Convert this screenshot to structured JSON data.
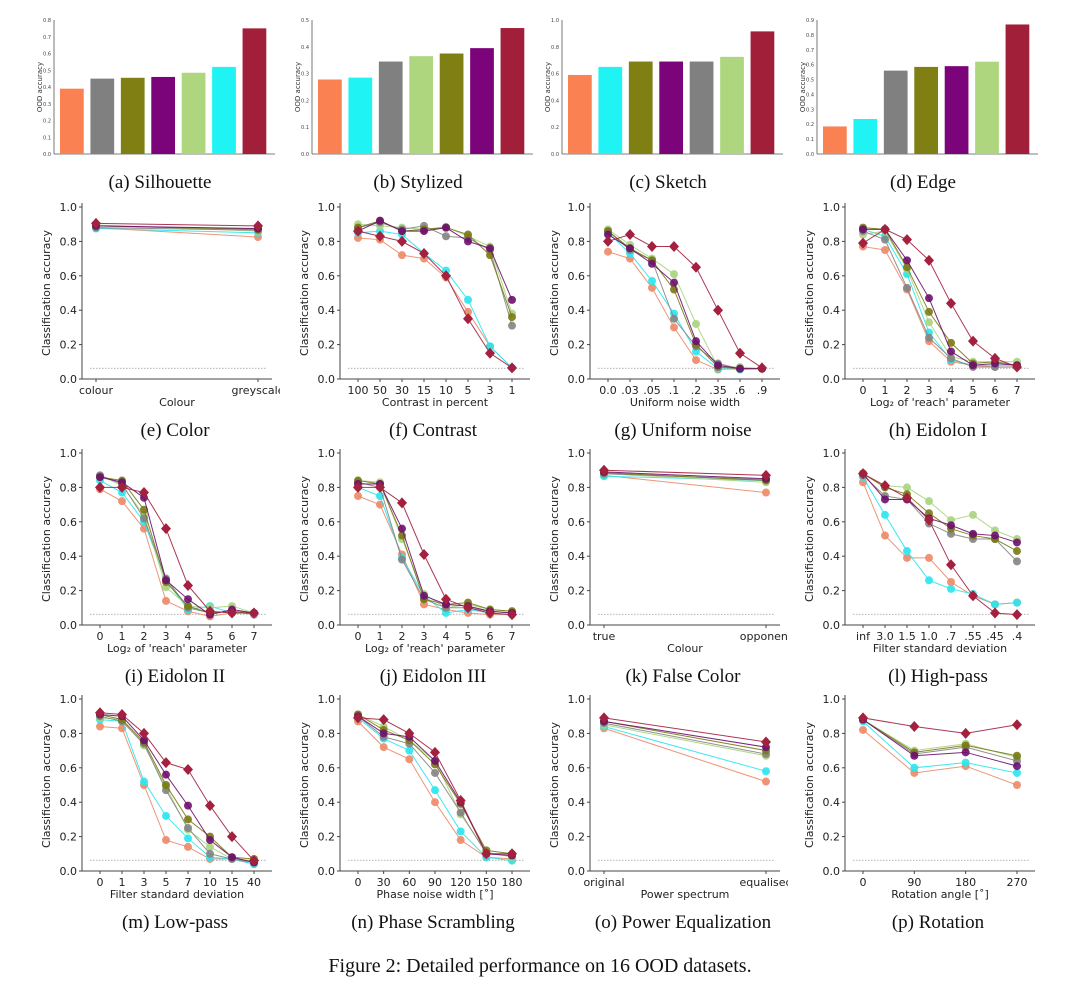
{
  "figure_caption": "Figure 2: Detailed performance on 16 OOD datasets.",
  "series_styles": [
    {
      "color": "#a3203f",
      "marker": "diamond"
    },
    {
      "color": "#6e0f6e",
      "marker": "circle"
    },
    {
      "color": "#7a7a14",
      "marker": "circle"
    },
    {
      "color": "#848484",
      "marker": "circle"
    },
    {
      "color": "#a9d47e",
      "marker": "circle"
    },
    {
      "color": "#2ae6ee",
      "marker": "circle"
    },
    {
      "color": "#ec8a68",
      "marker": "circle"
    }
  ],
  "chance_level": 0.0625,
  "chart_data": [
    {
      "type": "bar",
      "caption": "(a) Silhouette",
      "ylabel": "OOD accuracy",
      "ylim": [
        0,
        0.8
      ],
      "yticks": [
        "0.0",
        "0.1",
        "0.2",
        "0.3",
        "0.4",
        "0.5",
        "0.6",
        "0.7",
        "0.8"
      ],
      "bars": [
        {
          "value": 0.39,
          "color": "#f98152"
        },
        {
          "value": 0.45,
          "color": "#808080"
        },
        {
          "value": 0.455,
          "color": "#7f7f13"
        },
        {
          "value": 0.46,
          "color": "#7b047b"
        },
        {
          "value": 0.485,
          "color": "#add67e"
        },
        {
          "value": 0.52,
          "color": "#1ff3f3"
        },
        {
          "value": 0.75,
          "color": "#a11f38"
        }
      ]
    },
    {
      "type": "bar",
      "caption": "(b) Stylized",
      "ylabel": "OOD accuracy",
      "ylim": [
        0,
        0.5
      ],
      "yticks": [
        "0.0",
        "0.1",
        "0.2",
        "0.3",
        "0.4",
        "0.5"
      ],
      "bars": [
        {
          "value": 0.278,
          "color": "#f98152"
        },
        {
          "value": 0.285,
          "color": "#1ff3f3"
        },
        {
          "value": 0.345,
          "color": "#808080"
        },
        {
          "value": 0.365,
          "color": "#add67e"
        },
        {
          "value": 0.375,
          "color": "#7f7f13"
        },
        {
          "value": 0.395,
          "color": "#7b047b"
        },
        {
          "value": 0.47,
          "color": "#a11f38"
        }
      ]
    },
    {
      "type": "bar",
      "caption": "(c) Sketch",
      "ylabel": "OOD accuracy",
      "ylim": [
        0,
        1.0
      ],
      "yticks": [
        "0.0",
        "0.2",
        "0.4",
        "0.6",
        "0.8",
        "1.0"
      ],
      "bars": [
        {
          "value": 0.59,
          "color": "#f98152"
        },
        {
          "value": 0.65,
          "color": "#1ff3f3"
        },
        {
          "value": 0.69,
          "color": "#7f7f13"
        },
        {
          "value": 0.69,
          "color": "#7b047b"
        },
        {
          "value": 0.69,
          "color": "#808080"
        },
        {
          "value": 0.725,
          "color": "#add67e"
        },
        {
          "value": 0.915,
          "color": "#a11f38"
        }
      ]
    },
    {
      "type": "bar",
      "caption": "(d) Edge",
      "ylabel": "OOD accuracy",
      "ylim": [
        0,
        0.9
      ],
      "yticks": [
        "0.0",
        "0.1",
        "0.2",
        "0.3",
        "0.4",
        "0.5",
        "0.6",
        "0.7",
        "0.8",
        "0.9"
      ],
      "bars": [
        {
          "value": 0.185,
          "color": "#f98152"
        },
        {
          "value": 0.235,
          "color": "#1ff3f3"
        },
        {
          "value": 0.56,
          "color": "#808080"
        },
        {
          "value": 0.585,
          "color": "#7f7f13"
        },
        {
          "value": 0.59,
          "color": "#7b047b"
        },
        {
          "value": 0.62,
          "color": "#add67e"
        },
        {
          "value": 0.87,
          "color": "#a11f38"
        }
      ]
    },
    {
      "type": "line",
      "caption": "(e) Color",
      "xlabel": "Colour",
      "ylabel": "Classification accuracy",
      "ylim": [
        0,
        1
      ],
      "x": [
        "colour",
        "greyscale"
      ],
      "y": [
        [
          0.905,
          0.89
        ],
        [
          0.89,
          0.875
        ],
        [
          0.89,
          0.87
        ],
        [
          0.88,
          0.865
        ],
        [
          0.895,
          0.86
        ],
        [
          0.875,
          0.85
        ],
        [
          0.88,
          0.825
        ]
      ]
    },
    {
      "type": "line",
      "caption": "(f) Contrast",
      "xlabel": "Contrast in percent",
      "ylabel": "Classification accuracy",
      "ylim": [
        0,
        1
      ],
      "x": [
        "100",
        "50",
        "30",
        "15",
        "10",
        "5",
        "3",
        "1"
      ],
      "y": [
        [
          0.86,
          0.83,
          0.8,
          0.73,
          0.6,
          0.35,
          0.15,
          0.065
        ],
        [
          0.86,
          0.92,
          0.86,
          0.86,
          0.88,
          0.8,
          0.76,
          0.46
        ],
        [
          0.88,
          0.92,
          0.86,
          0.87,
          0.88,
          0.84,
          0.72,
          0.36
        ],
        [
          0.88,
          0.91,
          0.87,
          0.89,
          0.83,
          0.82,
          0.75,
          0.31
        ],
        [
          0.9,
          0.89,
          0.88,
          0.87,
          0.885,
          0.83,
          0.77,
          0.38
        ],
        [
          0.85,
          0.86,
          0.84,
          0.73,
          0.63,
          0.46,
          0.19,
          0.065
        ],
        [
          0.82,
          0.81,
          0.72,
          0.7,
          0.59,
          0.39,
          0.19,
          0.065
        ]
      ]
    },
    {
      "type": "line",
      "caption": "(g) Uniform noise",
      "xlabel": "Uniform noise width",
      "ylabel": "Classification accuracy",
      "ylim": [
        0,
        1
      ],
      "x": [
        "0.0",
        ".03",
        ".05",
        ".1",
        ".2",
        ".35",
        ".6",
        ".9"
      ],
      "y": [
        [
          0.8,
          0.84,
          0.77,
          0.77,
          0.65,
          0.4,
          0.15,
          0.065
        ],
        [
          0.84,
          0.76,
          0.67,
          0.56,
          0.22,
          0.08,
          0.06,
          0.06
        ],
        [
          0.86,
          0.76,
          0.69,
          0.52,
          0.2,
          0.07,
          0.06,
          0.06
        ],
        [
          0.86,
          0.75,
          0.69,
          0.35,
          0.19,
          0.09,
          0.06,
          0.06
        ],
        [
          0.87,
          0.78,
          0.7,
          0.61,
          0.32,
          0.07,
          0.07,
          0.06
        ],
        [
          0.85,
          0.73,
          0.57,
          0.38,
          0.16,
          0.06,
          0.055,
          0.06
        ],
        [
          0.74,
          0.7,
          0.53,
          0.3,
          0.11,
          0.055,
          0.06,
          0.06
        ]
      ]
    },
    {
      "type": "line",
      "caption": "(h) Eidolon I",
      "xlabel": "Log₂ of 'reach' parameter",
      "ylabel": "Classification accuracy",
      "ylim": [
        0,
        1
      ],
      "x": [
        "0",
        "1",
        "2",
        "3",
        "4",
        "5",
        "6",
        "7"
      ],
      "y": [
        [
          0.79,
          0.87,
          0.81,
          0.69,
          0.44,
          0.22,
          0.12,
          0.07
        ],
        [
          0.87,
          0.87,
          0.69,
          0.47,
          0.16,
          0.08,
          0.09,
          0.08
        ],
        [
          0.88,
          0.87,
          0.65,
          0.39,
          0.21,
          0.09,
          0.1,
          0.08
        ],
        [
          0.86,
          0.81,
          0.53,
          0.24,
          0.12,
          0.07,
          0.07,
          0.07
        ],
        [
          0.84,
          0.86,
          0.64,
          0.33,
          0.13,
          0.1,
          0.1,
          0.1
        ],
        [
          0.87,
          0.83,
          0.61,
          0.27,
          0.11,
          0.08,
          0.08,
          0.08
        ],
        [
          0.77,
          0.75,
          0.52,
          0.22,
          0.1,
          0.08,
          0.07,
          0.07
        ]
      ]
    },
    {
      "type": "line",
      "caption": "(i) Eidolon II",
      "xlabel": "Log₂ of 'reach' parameter",
      "ylabel": "Classification accuracy",
      "ylim": [
        0,
        1
      ],
      "x": [
        "0",
        "1",
        "2",
        "3",
        "4",
        "5",
        "6",
        "7"
      ],
      "y": [
        [
          0.8,
          0.8,
          0.77,
          0.56,
          0.23,
          0.08,
          0.07,
          0.07
        ],
        [
          0.86,
          0.83,
          0.74,
          0.26,
          0.15,
          0.06,
          0.09,
          0.07
        ],
        [
          0.86,
          0.84,
          0.67,
          0.25,
          0.11,
          0.07,
          0.08,
          0.07
        ],
        [
          0.87,
          0.82,
          0.62,
          0.27,
          0.1,
          0.07,
          0.08,
          0.06
        ],
        [
          0.87,
          0.81,
          0.64,
          0.22,
          0.11,
          0.1,
          0.11,
          0.07
        ],
        [
          0.84,
          0.77,
          0.6,
          0.26,
          0.09,
          0.11,
          0.07,
          0.07
        ],
        [
          0.79,
          0.72,
          0.56,
          0.14,
          0.08,
          0.05,
          0.07,
          0.07
        ]
      ]
    },
    {
      "type": "line",
      "caption": "(j) Eidolon III",
      "xlabel": "Log₂ of 'reach' parameter",
      "ylabel": "Classification accuracy",
      "ylim": [
        0,
        1
      ],
      "x": [
        "0",
        "1",
        "2",
        "3",
        "4",
        "5",
        "6",
        "7"
      ],
      "y": [
        [
          0.8,
          0.8,
          0.71,
          0.41,
          0.15,
          0.1,
          0.07,
          0.06
        ],
        [
          0.82,
          0.82,
          0.56,
          0.17,
          0.12,
          0.11,
          0.08,
          0.07
        ],
        [
          0.84,
          0.82,
          0.52,
          0.15,
          0.12,
          0.13,
          0.09,
          0.08
        ],
        [
          0.83,
          0.8,
          0.38,
          0.15,
          0.1,
          0.1,
          0.08,
          0.07
        ],
        [
          0.84,
          0.83,
          0.5,
          0.18,
          0.1,
          0.12,
          0.09,
          0.08
        ],
        [
          0.8,
          0.75,
          0.39,
          0.17,
          0.07,
          0.09,
          0.07,
          0.06
        ],
        [
          0.75,
          0.7,
          0.41,
          0.12,
          0.09,
          0.07,
          0.06,
          0.06
        ]
      ]
    },
    {
      "type": "line",
      "caption": "(k) False Color",
      "xlabel": "Colour",
      "ylabel": "Classification accuracy",
      "ylim": [
        0,
        1
      ],
      "x": [
        "true",
        "opponent"
      ],
      "y": [
        [
          0.9,
          0.87
        ],
        [
          0.89,
          0.85
        ],
        [
          0.885,
          0.84
        ],
        [
          0.88,
          0.845
        ],
        [
          0.88,
          0.83
        ],
        [
          0.865,
          0.84
        ],
        [
          0.87,
          0.77
        ]
      ]
    },
    {
      "type": "line",
      "caption": "(l) High-pass",
      "xlabel": "Filter standard deviation",
      "ylabel": "Classification accuracy",
      "ylim": [
        0,
        1
      ],
      "x": [
        "inf",
        "3.0",
        "1.5",
        "1.0",
        ".7",
        ".55",
        ".45",
        ".4"
      ],
      "y": [
        [
          0.88,
          0.81,
          0.74,
          0.61,
          0.35,
          0.17,
          0.07,
          0.06
        ],
        [
          0.88,
          0.73,
          0.73,
          0.62,
          0.58,
          0.53,
          0.52,
          0.48
        ],
        [
          0.88,
          0.8,
          0.76,
          0.65,
          0.56,
          0.52,
          0.5,
          0.43
        ],
        [
          0.87,
          0.75,
          0.73,
          0.59,
          0.53,
          0.5,
          0.5,
          0.37
        ],
        [
          0.88,
          0.81,
          0.8,
          0.72,
          0.61,
          0.64,
          0.55,
          0.5
        ],
        [
          0.86,
          0.64,
          0.43,
          0.26,
          0.21,
          0.18,
          0.12,
          0.13
        ],
        [
          0.83,
          0.52,
          0.39,
          0.39,
          0.25,
          0.17,
          0.12,
          0.13
        ]
      ]
    },
    {
      "type": "line",
      "caption": "(m) Low-pass",
      "xlabel": "Filter standard deviation",
      "ylabel": "Classification accuracy",
      "ylim": [
        0,
        1
      ],
      "x": [
        "0",
        "1",
        "3",
        "5",
        "7",
        "10",
        "15",
        "40"
      ],
      "y": [
        [
          0.92,
          0.91,
          0.8,
          0.63,
          0.59,
          0.38,
          0.2,
          0.06
        ],
        [
          0.91,
          0.9,
          0.76,
          0.56,
          0.38,
          0.18,
          0.08,
          0.05
        ],
        [
          0.91,
          0.88,
          0.75,
          0.5,
          0.3,
          0.2,
          0.08,
          0.07
        ],
        [
          0.9,
          0.87,
          0.74,
          0.47,
          0.25,
          0.1,
          0.07,
          0.05
        ],
        [
          0.89,
          0.88,
          0.73,
          0.49,
          0.24,
          0.14,
          0.07,
          0.06
        ],
        [
          0.88,
          0.87,
          0.52,
          0.32,
          0.19,
          0.08,
          0.07,
          0.04
        ],
        [
          0.84,
          0.83,
          0.5,
          0.18,
          0.14,
          0.07,
          0.07,
          0.04
        ]
      ]
    },
    {
      "type": "line",
      "caption": "(n) Phase Scrambling",
      "xlabel": "Phase noise width [˚]",
      "ylabel": "Classification accuracy",
      "ylim": [
        0,
        1
      ],
      "x": [
        "0",
        "30",
        "60",
        "90",
        "120",
        "150",
        "180"
      ],
      "y": [
        [
          0.89,
          0.88,
          0.8,
          0.69,
          0.41,
          0.1,
          0.1
        ],
        [
          0.9,
          0.8,
          0.78,
          0.64,
          0.4,
          0.1,
          0.09
        ],
        [
          0.91,
          0.82,
          0.76,
          0.62,
          0.39,
          0.12,
          0.1
        ],
        [
          0.9,
          0.78,
          0.74,
          0.57,
          0.34,
          0.1,
          0.09
        ],
        [
          0.91,
          0.84,
          0.76,
          0.64,
          0.33,
          0.11,
          0.08
        ],
        [
          0.89,
          0.77,
          0.7,
          0.47,
          0.23,
          0.08,
          0.06
        ],
        [
          0.87,
          0.72,
          0.65,
          0.4,
          0.18,
          0.08,
          0.07
        ]
      ]
    },
    {
      "type": "line",
      "caption": "(o) Power Equalization",
      "xlabel": "Power spectrum",
      "ylabel": "Classification accuracy",
      "ylim": [
        0,
        1
      ],
      "x": [
        "original",
        "equalised"
      ],
      "y": [
        [
          0.89,
          0.75
        ],
        [
          0.87,
          0.72
        ],
        [
          0.87,
          0.7
        ],
        [
          0.86,
          0.68
        ],
        [
          0.85,
          0.67
        ],
        [
          0.84,
          0.58
        ],
        [
          0.83,
          0.52
        ]
      ]
    },
    {
      "type": "line",
      "caption": "(p) Rotation",
      "xlabel": "Rotation angle [˚]",
      "ylabel": "Classification accuracy",
      "ylim": [
        0,
        1
      ],
      "x": [
        "0",
        "90",
        "180",
        "270"
      ],
      "y": [
        [
          0.89,
          0.84,
          0.8,
          0.85
        ],
        [
          0.88,
          0.67,
          0.69,
          0.61
        ],
        [
          0.88,
          0.69,
          0.73,
          0.67
        ],
        [
          0.88,
          0.68,
          0.72,
          0.64
        ],
        [
          0.88,
          0.7,
          0.74,
          0.66
        ],
        [
          0.87,
          0.6,
          0.63,
          0.57
        ],
        [
          0.82,
          0.57,
          0.61,
          0.5
        ]
      ]
    }
  ]
}
